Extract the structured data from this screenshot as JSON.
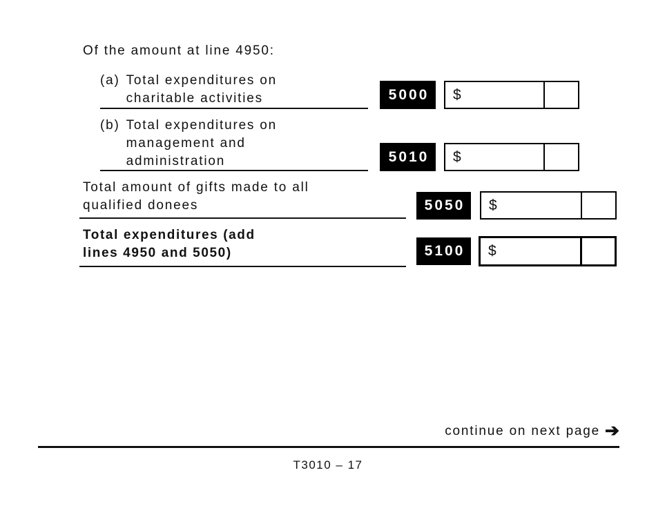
{
  "form": {
    "intro_text": "Of the amount at line 4950:",
    "rows": [
      {
        "prefix": "(a)",
        "lines": [
          "Total expenditures on",
          "charitable activities"
        ],
        "code": "5000",
        "currency": "$",
        "amount": "",
        "cents": ""
      },
      {
        "prefix": "(b)",
        "lines": [
          "Total expenditures on",
          "management and",
          "administration"
        ],
        "code": "5010",
        "currency": "$",
        "amount": "",
        "cents": ""
      },
      {
        "prefix": "",
        "lines": [
          "Total amount of gifts made to all",
          "qualified donees"
        ],
        "code": "5050",
        "currency": "$",
        "amount": "",
        "cents": ""
      },
      {
        "prefix": "",
        "lines": [
          "Total expenditures (add",
          "lines 4950 and 5050)"
        ],
        "code": "5100",
        "currency": "$",
        "amount": "",
        "cents": ""
      }
    ],
    "continue_label": "continue on next page",
    "arrow_icon": "➔",
    "footer_text": "T3010 – 17",
    "colors": {
      "ink": "#111111",
      "code_box_bg": "#000000",
      "code_box_text": "#ffffff",
      "background": "#ffffff"
    }
  }
}
